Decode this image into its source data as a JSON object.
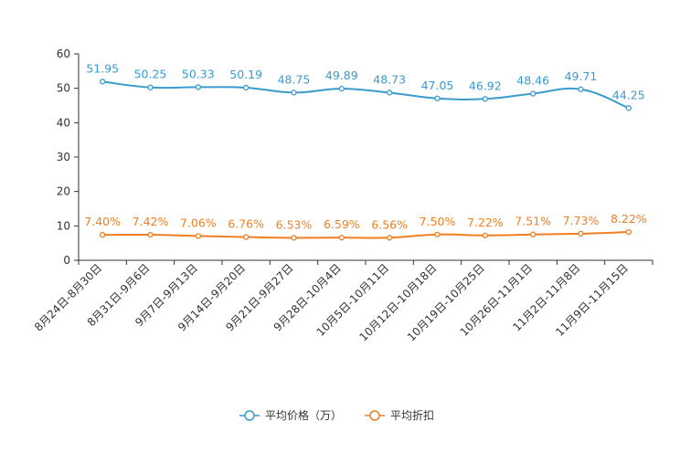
{
  "chart_data": {
    "type": "line",
    "title": "",
    "xlabel": "",
    "ylabel": "",
    "ylim": [
      0,
      60
    ],
    "yticks": [
      0,
      10,
      20,
      30,
      40,
      50,
      60
    ],
    "categories": [
      "8月24日-8月30日",
      "8月31日-9月6日",
      "9月7日-9月13日",
      "9月14日-9月20日",
      "9月21日-9月27日",
      "9月28日-10月4日",
      "10月5日-10月11日",
      "10月12日-10月18日",
      "10月19日-10月25日",
      "10月26日-11月1日",
      "11月2日-11月8日",
      "11月9日-11月15日"
    ],
    "series": [
      {
        "name": "平均价格（万）",
        "color": "#3a9bcd",
        "values": [
          51.95,
          50.25,
          50.33,
          50.19,
          48.75,
          49.89,
          48.73,
          47.05,
          46.92,
          48.46,
          49.71,
          44.25
        ],
        "labels": [
          "51.95",
          "50.25",
          "50.33",
          "50.19",
          "48.75",
          "49.89",
          "48.73",
          "47.05",
          "46.92",
          "48.46",
          "49.71",
          "44.25"
        ]
      },
      {
        "name": "平均折扣",
        "color": "#f07f22",
        "values": [
          7.4,
          7.42,
          7.06,
          6.76,
          6.53,
          6.59,
          6.56,
          7.5,
          7.22,
          7.51,
          7.73,
          8.22
        ],
        "labels": [
          "7.40%",
          "7.42%",
          "7.06%",
          "6.76%",
          "6.53%",
          "6.59%",
          "6.56%",
          "7.50%",
          "7.22%",
          "7.51%",
          "7.73%",
          "8.22%"
        ]
      }
    ],
    "legend_position": "bottom-center",
    "grid": false
  }
}
